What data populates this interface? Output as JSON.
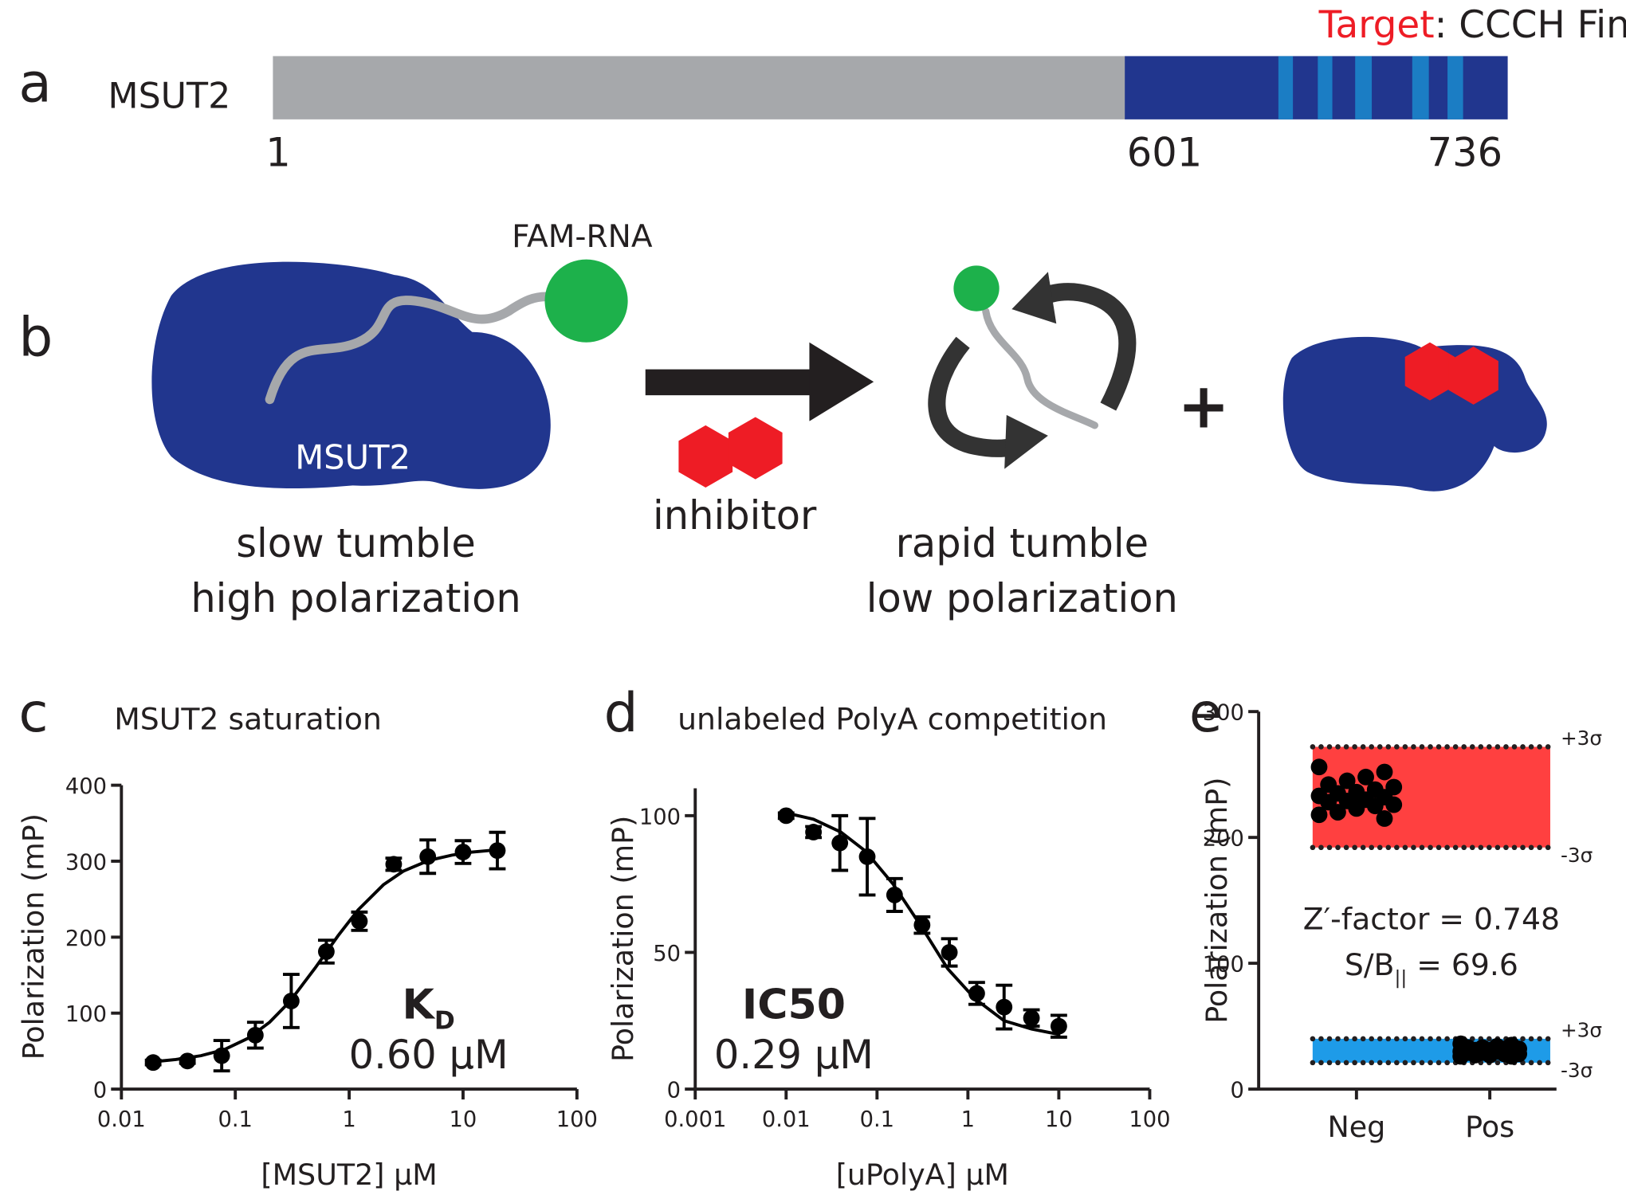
{
  "panel_a": {
    "label": "a",
    "protein": "MSUT2",
    "target_prefix": "Target",
    "target_suffix": ": CCCH Fingers",
    "positions": [
      "1",
      "601",
      "736"
    ]
  },
  "panel_b": {
    "label": "b",
    "probe": "FAM-RNA",
    "protein": "MSUT2",
    "inhibitor": "inhibitor",
    "left_caption": [
      "slow tumble",
      "high polarization"
    ],
    "right_caption": [
      "rapid tumble",
      "low polarization"
    ],
    "plus": "+"
  },
  "chart_data": [
    {
      "type": "scatter",
      "panel": "c",
      "title": "MSUT2 saturation",
      "x_label": "[MSUT2] µM",
      "y_label": "Polarization (mP)",
      "x_scale": "log",
      "xlim": [
        0.01,
        100
      ],
      "xticks": [
        0.01,
        0.1,
        1,
        10,
        100
      ],
      "ylim": [
        0,
        400
      ],
      "yticks": [
        0,
        100,
        200,
        300,
        400
      ],
      "color": "#000000",
      "x": [
        0.019,
        0.038,
        0.076,
        0.15,
        0.31,
        0.63,
        1.23,
        2.46,
        4.9,
        10,
        20
      ],
      "values": [
        35,
        37,
        44,
        71,
        116,
        181,
        221,
        296,
        306,
        312,
        314
      ],
      "errors": [
        3,
        3,
        20,
        17,
        35,
        15,
        12,
        8,
        22,
        15,
        24
      ],
      "fit": {
        "x": [
          0.019,
          0.03,
          0.05,
          0.08,
          0.13,
          0.2,
          0.3,
          0.5,
          0.8,
          1.2,
          2,
          3,
          5,
          8,
          12,
          20
        ],
        "values": [
          36,
          39,
          44,
          52,
          67,
          88,
          115,
          159,
          202,
          236,
          269,
          287,
          301,
          308,
          312,
          315
        ]
      },
      "annotation": {
        "symbol": "K",
        "subscript": "D",
        "value": "0.60 µM"
      }
    },
    {
      "type": "scatter",
      "panel": "d",
      "title": "unlabeled PolyA competition",
      "x_label": "[uPolyA] µM",
      "y_label": "Polarization  (mP)",
      "x_scale": "log",
      "xlim": [
        0.001,
        100
      ],
      "xticks": [
        0.001,
        0.01,
        0.1,
        1,
        10,
        100
      ],
      "ylim": [
        0,
        110
      ],
      "yticks": [
        0,
        50,
        100
      ],
      "color": "#000000",
      "x": [
        0.01,
        0.02,
        0.039,
        0.078,
        0.156,
        0.313,
        0.625,
        1.25,
        2.5,
        5,
        10
      ],
      "values": [
        100,
        94,
        90,
        85,
        71,
        60,
        50,
        35,
        30,
        26,
        23
      ],
      "errors": [
        1,
        2,
        10,
        14,
        6,
        3,
        5,
        4,
        8,
        3,
        4
      ],
      "fit": {
        "x": [
          0.01,
          0.02,
          0.04,
          0.075,
          0.15,
          0.3,
          0.6,
          1.2,
          2.5,
          5,
          10
        ],
        "values": [
          101,
          98.7,
          94,
          87,
          75,
          60,
          44,
          33,
          25,
          22,
          20
        ]
      },
      "annotation": {
        "symbol": "IC50",
        "value": "0.29 µM"
      }
    },
    {
      "type": "strip",
      "panel": "e",
      "y_label": "Polarization  (mP)",
      "categories": [
        "Neg",
        "Pos"
      ],
      "ylim": [
        0,
        300
      ],
      "yticks": [
        0,
        100,
        200,
        300
      ],
      "color": "#000000",
      "groups": [
        [
          256,
          252,
          248,
          245,
          242,
          240,
          238,
          236,
          235,
          233,
          232,
          230,
          229,
          228,
          226,
          225,
          223,
          220,
          218,
          215
        ],
        [
          36,
          35,
          34,
          33,
          33,
          32,
          32,
          31,
          31,
          30,
          30,
          30,
          29,
          29,
          28,
          28,
          27,
          27,
          26,
          26
        ]
      ],
      "bands": [
        {
          "color": "#ff4040",
          "lower": 192,
          "upper": 272,
          "upper_label": "+3σ",
          "lower_label": "-3σ"
        },
        {
          "color": "#1e9be8",
          "lower": 21,
          "upper": 40,
          "upper_label": "+3σ",
          "lower_label": "-3σ"
        }
      ],
      "annotation": {
        "z_factor": "Z′-factor = 0.748",
        "sb_prefix": "S/B",
        "sb_subscript": "||",
        "sb_suffix": " = 69.6"
      }
    }
  ]
}
